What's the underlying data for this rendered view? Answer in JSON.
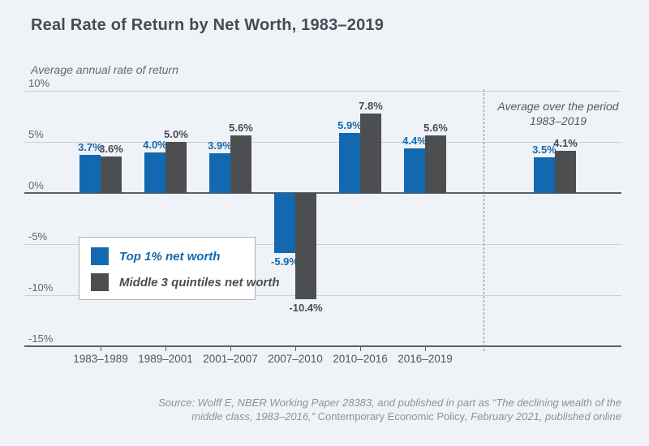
{
  "title": "Real Rate of Return by Net Worth, 1983–2019",
  "axis_note": "Average annual rate of return",
  "right_note_line1": "Average over the period",
  "right_note_line2": "1983–2019",
  "legend": {
    "items": [
      {
        "label": "Top 1% net worth",
        "color": "#1269b0"
      },
      {
        "label": "Middle 3 quintiles net worth",
        "color": "#4c4e50"
      }
    ]
  },
  "source_line1": "Source: Wolff E, NBER Working Paper 28383, and published in part as “The declining wealth of the",
  "source_line2_pre": "middle class, 1983–2016,” ",
  "source_line2_journal": "Contemporary Economic Policy",
  "source_line2_post": ", February 2021, published online",
  "chart_data": {
    "type": "bar",
    "title": "Real Rate of Return by Net Worth, 1983–2019",
    "ylabel": "Average annual rate of return",
    "categories": [
      "1983–1989",
      "1989–2001",
      "2001–2007",
      "2007–2010",
      "2010–2016",
      "2016–2019"
    ],
    "series": [
      {
        "name": "Top 1% net worth",
        "color": "#1269b0",
        "values": [
          3.7,
          4.0,
          3.9,
          -5.9,
          5.9,
          4.4
        ],
        "average": 3.5
      },
      {
        "name": "Middle 3 quintiles net worth",
        "color": "#4c4e50",
        "values": [
          3.6,
          5.0,
          5.6,
          -10.4,
          7.8,
          5.6
        ],
        "average": 4.1
      }
    ],
    "average_section": {
      "label": "Average over the period 1983–2019",
      "category": "1983–2019"
    },
    "yticks": [
      10,
      5,
      0,
      -5,
      -10,
      -15
    ],
    "ytick_labels": [
      "10%",
      "5%",
      "0%",
      "-5%",
      "-10%",
      "-15%"
    ],
    "ylim": [
      -15,
      10
    ],
    "grid": true,
    "legend_position": "inside-lower-left",
    "value_label_format": "percent_one_decimal"
  }
}
